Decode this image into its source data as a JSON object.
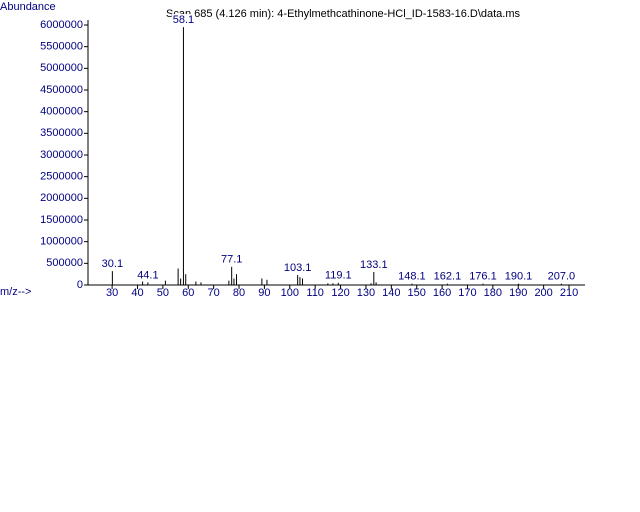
{
  "chart_data": {
    "type": "spectrum",
    "title": "Scan 685 (4.126 min): 4-Ethylmethcathinone-HCl_ID-1583-16.D\\data.ms",
    "y_label": "Abundance",
    "x_label": "m/z-->",
    "xlim": [
      20.5,
      216.3
    ],
    "xticks": [
      30,
      40,
      50,
      60,
      70,
      80,
      90,
      100,
      110,
      120,
      130,
      140,
      150,
      160,
      170,
      180,
      190,
      200,
      210
    ],
    "ylim": [
      0,
      6000000
    ],
    "yticks": [
      0,
      500000,
      1000000,
      1500000,
      2000000,
      2500000,
      3000000,
      3500000,
      4000000,
      4500000,
      5000000,
      5500000,
      6000000
    ],
    "color": "#000000",
    "label_color": "#000080",
    "series": [
      {
        "x": [
          30.1,
          42,
          44.1,
          51,
          56,
          57,
          58.1,
          59,
          63,
          65,
          76,
          77.1,
          78,
          79,
          89,
          91,
          103.1,
          104,
          105,
          115,
          117,
          119.1,
          132,
          133.1,
          134,
          148.1,
          162.1,
          176.1,
          190.1,
          207.0
        ],
        "values": [
          320000,
          80000,
          60000,
          100000,
          380000,
          150000,
          5950000,
          250000,
          80000,
          60000,
          100000,
          420000,
          150000,
          250000,
          150000,
          120000,
          230000,
          180000,
          150000,
          40000,
          40000,
          50000,
          40000,
          300000,
          60000,
          30000,
          30000,
          30000,
          30000,
          30000
        ],
        "peak_labels": [
          "30.1",
          null,
          "44.1",
          null,
          null,
          null,
          "58.1",
          null,
          null,
          null,
          null,
          "77.1",
          null,
          null,
          null,
          null,
          "103.1",
          null,
          null,
          null,
          null,
          "119.1",
          null,
          "133.1",
          null,
          "148.1",
          "162.1",
          "176.1",
          "190.1",
          "207.0"
        ]
      }
    ]
  }
}
